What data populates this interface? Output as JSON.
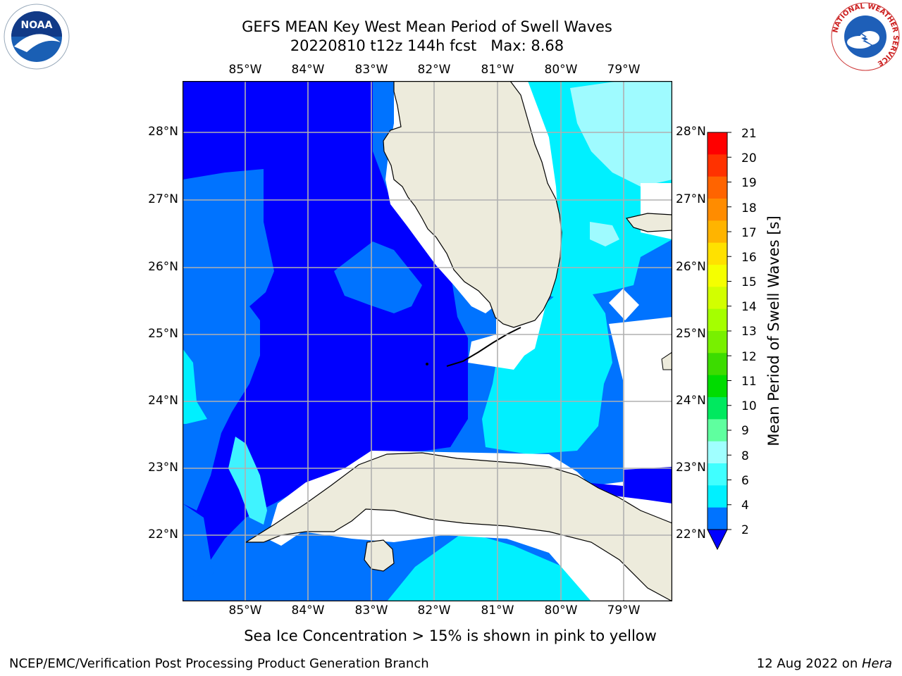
{
  "header": {
    "title_line1": "GEFS MEAN Key West Mean Period of Swell Waves",
    "title_line2": "20220810 t12z 144h fcst   Max: 8.68"
  },
  "logos": {
    "noaa_text": "NOAA",
    "nws_ring_text": "NATIONAL WEATHER SERVICE"
  },
  "map": {
    "lon_ticks": [
      "85°W",
      "84°W",
      "83°W",
      "82°W",
      "81°W",
      "80°W",
      "79°W"
    ],
    "lat_ticks": [
      "28°N",
      "27°N",
      "26°N",
      "25°N",
      "24°N",
      "23°N",
      "22°N"
    ],
    "extent_note": "Florida, Cuba, Gulf of Mexico, Florida Straits",
    "colors": {
      "land": "#edebdc",
      "no_data": "#ffffff",
      "band_lt2": "#0000ff",
      "band_2_4": "#0073ff",
      "band_4_6": "#00e8ff",
      "band_6_8": "#3ff3ff",
      "band_8_9": "#9ffbff",
      "grid": "#b0b0b0"
    }
  },
  "colorbar": {
    "label": "Mean Period of Swell Waves [s]",
    "ticks": [
      "21",
      "20",
      "19",
      "18",
      "17",
      "16",
      "15",
      "14",
      "13",
      "12",
      "11",
      "10",
      "9",
      "8",
      "6",
      "4",
      "2"
    ],
    "colors": [
      "#ff0000",
      "#ff3200",
      "#ff6400",
      "#ff8c00",
      "#ffb400",
      "#ffe100",
      "#f5ff00",
      "#d2ff00",
      "#a5ff00",
      "#78f000",
      "#3cdc00",
      "#00dc00",
      "#00e95f",
      "#5fff9f",
      "#a0ffff",
      "#40ffff",
      "#00f0ff",
      "#0073ff"
    ],
    "extend_color": "#0000ff"
  },
  "notes": {
    "sea_ice": "Sea Ice Concentration > 15% is shown in pink to yellow"
  },
  "footer": {
    "left": "NCEP/EMC/Verification Post Processing Product Generation Branch",
    "date": "12 Aug 2022 on ",
    "host": "Hera"
  }
}
